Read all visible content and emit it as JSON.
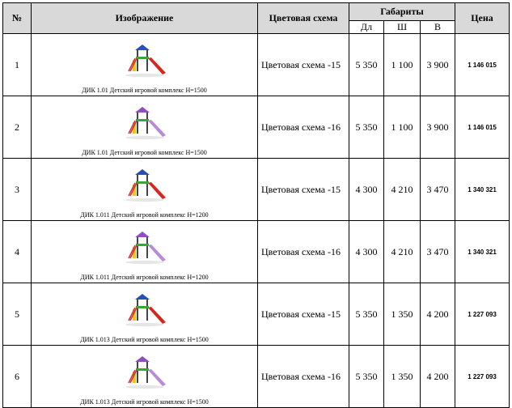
{
  "header": {
    "num": "№",
    "image": "Изображение",
    "scheme": "Цветовая схема",
    "dims": "Габариты",
    "price": "Цена",
    "d": "Дл",
    "w": "Ш",
    "h": "В"
  },
  "rows": [
    {
      "num": "1",
      "caption": "ДИК 1.01 Детский игровой комплекс Н=1500",
      "scheme": "Цветовая схема -15",
      "d": "5 350",
      "w": "1 100",
      "h": "3 900",
      "price": "1 146 015",
      "icon": "playground-red-slide-icon"
    },
    {
      "num": "2",
      "caption": "ДИК 1.01 Детский игровой комплекс Н=1500",
      "scheme": "Цветовая схема -16",
      "d": "5 350",
      "w": "1 100",
      "h": "3 900",
      "price": "1 146 015",
      "icon": "playground-purple-slide-icon"
    },
    {
      "num": "3",
      "caption": "ДИК 1.011 Детский игровой комплекс Н=1200",
      "scheme": "Цветовая схема -15",
      "d": "4 300",
      "w": "4 210",
      "h": "3 470",
      "price": "1 340 321",
      "icon": "playground-red-slide-icon"
    },
    {
      "num": "4",
      "caption": "ДИК 1.011 Детский игровой комплекс Н=1200",
      "scheme": "Цветовая схема -16",
      "d": "4 300",
      "w": "4 210",
      "h": "3 470",
      "price": "1 340 321",
      "icon": "playground-purple-slide-icon"
    },
    {
      "num": "5",
      "caption": "ДИК 1.013 Детский игровой комплекс  Н=1500",
      "scheme": "Цветовая схема -15",
      "d": "5 350",
      "w": "1 350",
      "h": "4 200",
      "price": "1 227 093",
      "icon": "playground-red-slide-icon"
    },
    {
      "num": "6",
      "caption": "ДИК 1.013 Детский игровой комплекс  Н=1500",
      "scheme": "Цветовая схема -16",
      "d": "5 350",
      "w": "1 350",
      "h": "4 200",
      "price": "1 227 093",
      "icon": "playground-purple-slide-icon"
    }
  ],
  "colors": {
    "header_bg": "#d9d9d9",
    "scheme15_slide": "#d7261e",
    "scheme16_slide": "#b98ad6"
  }
}
